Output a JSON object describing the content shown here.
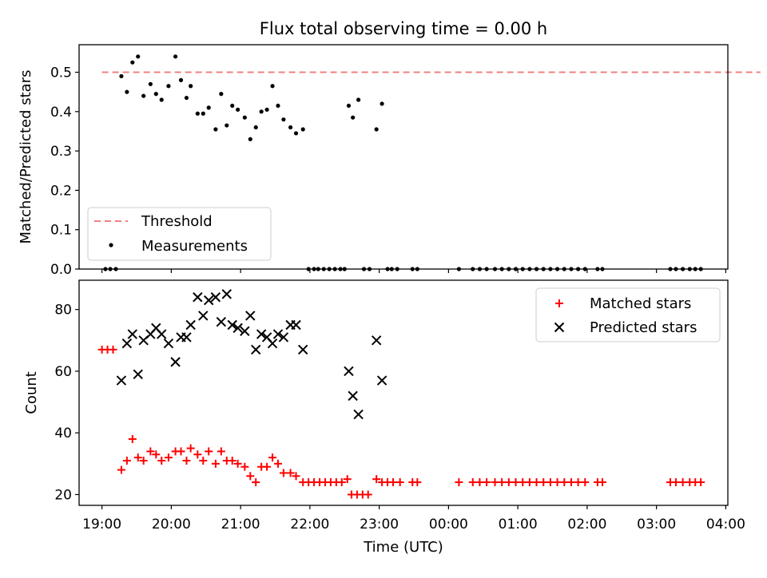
{
  "title": "Flux total observing time = 0.00 h",
  "xlabel": "Time (UTC)",
  "x_ticks": [
    {
      "hour": 19,
      "label": "19:00"
    },
    {
      "hour": 20,
      "label": "20:00"
    },
    {
      "hour": 21,
      "label": "21:00"
    },
    {
      "hour": 22,
      "label": "22:00"
    },
    {
      "hour": 23,
      "label": "23:00"
    },
    {
      "hour": 24,
      "label": "00:00"
    },
    {
      "hour": 25,
      "label": "01:00"
    },
    {
      "hour": 26,
      "label": "02:00"
    },
    {
      "hour": 27,
      "label": "03:00"
    },
    {
      "hour": 28,
      "label": "04:00"
    }
  ],
  "colors": {
    "threshold": "#f08080",
    "measurements": "#000000",
    "matched": "#ff0000",
    "predicted": "#000000"
  },
  "chart_data": [
    {
      "type": "scatter",
      "ylabel": "Matched/Predicted stars",
      "ylim": [
        0,
        0.57
      ],
      "xlim_hours": [
        18.67,
        28.03
      ],
      "y_ticks": [
        "0.0",
        "0.1",
        "0.2",
        "0.3",
        "0.4",
        "0.5"
      ],
      "legend_position": "lower-left",
      "series": [
        {
          "name": "Threshold",
          "style": "dashed-line",
          "x_range": [
            19.0,
            28.5
          ],
          "x_range_labels": [
            "19:00",
            "04:30"
          ],
          "value": 0.5
        },
        {
          "name": "Measurements",
          "style": "dot",
          "x": [
            19.05,
            19.12,
            19.2,
            19.28,
            19.36,
            19.44,
            19.52,
            19.6,
            19.7,
            19.78,
            19.86,
            19.96,
            20.06,
            20.14,
            20.22,
            20.28,
            20.38,
            20.46,
            20.54,
            20.64,
            20.72,
            20.8,
            20.88,
            20.96,
            21.06,
            21.14,
            21.22,
            21.3,
            21.38,
            21.46,
            21.54,
            21.62,
            21.72,
            21.8,
            21.9,
            21.98,
            22.06,
            22.12,
            22.2,
            22.28,
            22.36,
            22.44,
            22.5,
            22.56,
            22.62,
            22.7,
            22.78,
            22.86,
            22.96,
            23.04,
            23.12,
            23.18,
            23.26,
            23.48,
            23.55,
            24.15,
            24.35,
            24.45,
            24.55,
            24.67,
            24.77,
            24.87,
            24.97,
            25.07,
            25.17,
            25.27,
            25.37,
            25.47,
            25.57,
            25.67,
            25.77,
            25.87,
            25.97,
            26.15,
            26.22,
            27.2,
            27.28,
            27.38,
            27.48,
            27.56,
            27.64
          ],
          "values": [
            0.0,
            0.0,
            0.0,
            0.49,
            0.45,
            0.525,
            0.54,
            0.44,
            0.47,
            0.445,
            0.43,
            0.465,
            0.54,
            0.48,
            0.435,
            0.465,
            0.395,
            0.395,
            0.41,
            0.355,
            0.445,
            0.365,
            0.415,
            0.405,
            0.385,
            0.33,
            0.36,
            0.4,
            0.405,
            0.465,
            0.415,
            0.38,
            0.36,
            0.345,
            0.355,
            0.0,
            0.0,
            0.0,
            0.0,
            0.0,
            0.0,
            0.0,
            0.0,
            0.415,
            0.385,
            0.43,
            0.0,
            0.0,
            0.355,
            0.42,
            0.0,
            0.0,
            0.0,
            0.0,
            0.0,
            0.0,
            0.0,
            0.0,
            0.0,
            0.0,
            0.0,
            0.0,
            0.0,
            0.0,
            0.0,
            0.0,
            0.0,
            0.0,
            0.0,
            0.0,
            0.0,
            0.0,
            0.0,
            0.0,
            0.0,
            0.0,
            0.0,
            0.0,
            0.0,
            0.0,
            0.0
          ]
        }
      ]
    },
    {
      "type": "scatter",
      "ylabel": "Count",
      "ylim": [
        16.5,
        89.5
      ],
      "xlim_hours": [
        18.67,
        28.03
      ],
      "y_ticks": [
        "20",
        "40",
        "60",
        "80"
      ],
      "legend_position": "upper-right",
      "series": [
        {
          "name": "Matched stars",
          "style": "plus",
          "x": [
            19.0,
            19.08,
            19.16,
            19.28,
            19.36,
            19.44,
            19.52,
            19.6,
            19.7,
            19.78,
            19.86,
            19.96,
            20.06,
            20.14,
            20.22,
            20.28,
            20.38,
            20.46,
            20.54,
            20.64,
            20.72,
            20.8,
            20.88,
            20.96,
            21.06,
            21.14,
            21.22,
            21.3,
            21.38,
            21.46,
            21.54,
            21.62,
            21.72,
            21.8,
            21.9,
            21.98,
            22.06,
            22.14,
            22.22,
            22.3,
            22.38,
            22.46,
            22.54,
            22.6,
            22.68,
            22.76,
            22.84,
            22.96,
            23.04,
            23.12,
            23.2,
            23.3,
            23.48,
            23.55,
            24.15,
            24.35,
            24.45,
            24.55,
            24.67,
            24.77,
            24.87,
            24.97,
            25.07,
            25.17,
            25.27,
            25.37,
            25.47,
            25.57,
            25.67,
            25.77,
            25.87,
            25.97,
            26.15,
            26.22,
            27.2,
            27.28,
            27.38,
            27.48,
            27.56,
            27.64
          ],
          "values": [
            67,
            67,
            67,
            28,
            31,
            38,
            32,
            31,
            34,
            33,
            31,
            32,
            34,
            34,
            31,
            35,
            33,
            31,
            34,
            30,
            34,
            31,
            31,
            30,
            29,
            26,
            24,
            29,
            29,
            32,
            30,
            27,
            27,
            26,
            24,
            24,
            24,
            24,
            24,
            24,
            24,
            24,
            25,
            20,
            20,
            20,
            20,
            25,
            24,
            24,
            24,
            24,
            24,
            24,
            24,
            24,
            24,
            24,
            24,
            24,
            24,
            24,
            24,
            24,
            24,
            24,
            24,
            24,
            24,
            24,
            24,
            24,
            24,
            24,
            24,
            24,
            24,
            24,
            24,
            24
          ]
        },
        {
          "name": "Predicted stars",
          "style": "x",
          "x": [
            19.28,
            19.36,
            19.44,
            19.52,
            19.6,
            19.7,
            19.78,
            19.86,
            19.96,
            20.06,
            20.14,
            20.22,
            20.28,
            20.38,
            20.46,
            20.54,
            20.64,
            20.72,
            20.8,
            20.88,
            20.96,
            21.06,
            21.14,
            21.22,
            21.3,
            21.38,
            21.46,
            21.54,
            21.62,
            21.72,
            21.8,
            21.9,
            22.56,
            22.62,
            22.7,
            22.96,
            23.04
          ],
          "values": [
            57,
            69,
            72,
            59,
            70,
            72,
            74,
            72,
            69,
            63,
            71,
            71,
            75,
            84,
            78,
            83,
            84,
            76,
            85,
            75,
            74,
            73,
            78,
            67,
            72,
            71,
            69,
            72,
            71,
            75,
            75,
            67,
            60,
            52,
            46,
            70,
            57
          ]
        }
      ]
    }
  ]
}
